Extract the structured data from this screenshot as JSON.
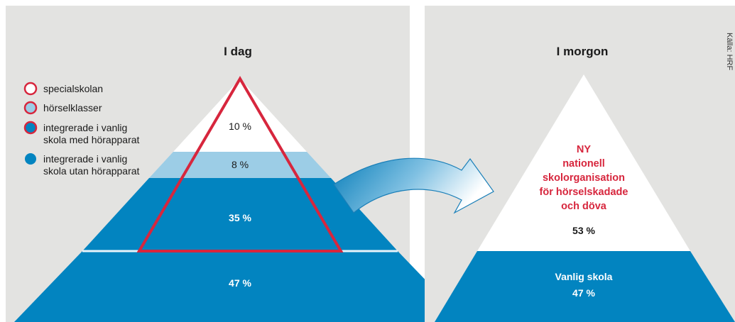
{
  "source": "Källa: HRF",
  "colors": {
    "white": "#ffffff",
    "light_blue": "#9ccde6",
    "blue": "#0284c0",
    "red": "#d7263d",
    "panel": "#e3e3e1"
  },
  "left": {
    "title": "I dag",
    "legend": [
      {
        "lines": [
          "specialskolan"
        ],
        "fill": "#ffffff",
        "stroke": "#d7263d"
      },
      {
        "lines": [
          "hörselklasser"
        ],
        "fill": "#9ccde6",
        "stroke": "#d7263d"
      },
      {
        "lines": [
          "integrerade i vanlig",
          "skola med hörapparat"
        ],
        "fill": "#0284c0",
        "stroke": "#d7263d"
      },
      {
        "lines": [
          "integrerade i vanlig",
          "skola utan hörapparat"
        ],
        "fill": "#0284c0",
        "stroke": "none"
      }
    ],
    "layers": [
      {
        "label": "10 %",
        "value": 10,
        "fill": "#ffffff"
      },
      {
        "label": "8 %",
        "value": 8,
        "fill": "#9ccde6"
      },
      {
        "label": "35 %",
        "value": 35,
        "fill": "#0284c0"
      },
      {
        "label": "47 %",
        "value": 47,
        "fill": "#0284c0"
      }
    ]
  },
  "right": {
    "title": "I morgon",
    "top_lines": [
      "NY",
      "nationell",
      "skolorganisation",
      "för hörselskadade",
      "och döva"
    ],
    "top_pct": "53 %",
    "bottom_label": "Vanlig skola",
    "bottom_pct": "47 %"
  }
}
